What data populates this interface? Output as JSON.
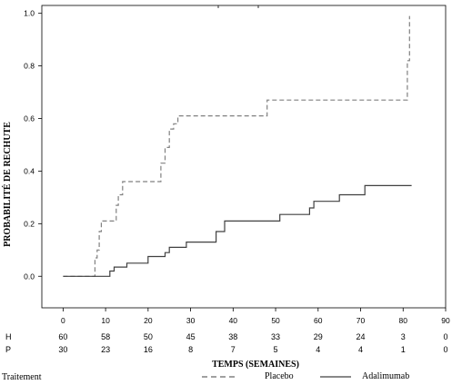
{
  "chart_data": {
    "type": "line",
    "subtype": "step",
    "title": "",
    "xlabel": "TEMPS (SEMAINES)",
    "ylabel": "PROBABILITÉ DE RECHUTE",
    "xlim": [
      -5,
      90
    ],
    "ylim": [
      -0.12,
      1.03
    ],
    "xticks": [
      0,
      10,
      20,
      30,
      40,
      50,
      60,
      70,
      80,
      90
    ],
    "yticks": [
      0.0,
      0.2,
      0.4,
      0.6,
      0.8,
      1.0
    ],
    "ytick_labels": [
      "0.0",
      "0.2",
      "0.4",
      "0.6",
      "0.8",
      "1.0"
    ],
    "grid": false,
    "legend_title": "Traitement",
    "series": [
      {
        "name": "Placebo",
        "style": "dashed",
        "color": "#808080",
        "x": [
          0,
          7,
          7.5,
          8,
          8.5,
          9,
          10,
          12,
          12.5,
          13,
          14,
          22,
          23,
          24,
          25,
          26,
          27,
          47,
          48,
          80.5,
          81,
          81.5
        ],
        "y": [
          0.0,
          0.0,
          0.07,
          0.1,
          0.17,
          0.21,
          0.21,
          0.21,
          0.27,
          0.31,
          0.36,
          0.36,
          0.43,
          0.49,
          0.56,
          0.58,
          0.61,
          0.61,
          0.67,
          0.67,
          0.82,
          0.99
        ]
      },
      {
        "name": "Adalimumab",
        "style": "solid",
        "color": "#404040",
        "x": [
          0,
          10,
          11,
          12,
          15,
          20,
          24,
          25,
          29,
          36,
          38,
          51,
          58,
          59,
          65,
          71,
          82
        ],
        "y": [
          0.0,
          0.0,
          0.02,
          0.035,
          0.05,
          0.075,
          0.09,
          0.11,
          0.13,
          0.17,
          0.21,
          0.235,
          0.26,
          0.285,
          0.31,
          0.345,
          0.345
        ]
      }
    ],
    "at_risk": {
      "rows": [
        {
          "label": "H",
          "values": [
            "60",
            "58",
            "50",
            "45",
            "38",
            "33",
            "29",
            "24",
            "3",
            "0"
          ]
        },
        {
          "label": "P",
          "values": [
            "30",
            "23",
            "16",
            "8",
            "7",
            "5",
            "4",
            "4",
            "1",
            "0"
          ]
        }
      ]
    }
  }
}
